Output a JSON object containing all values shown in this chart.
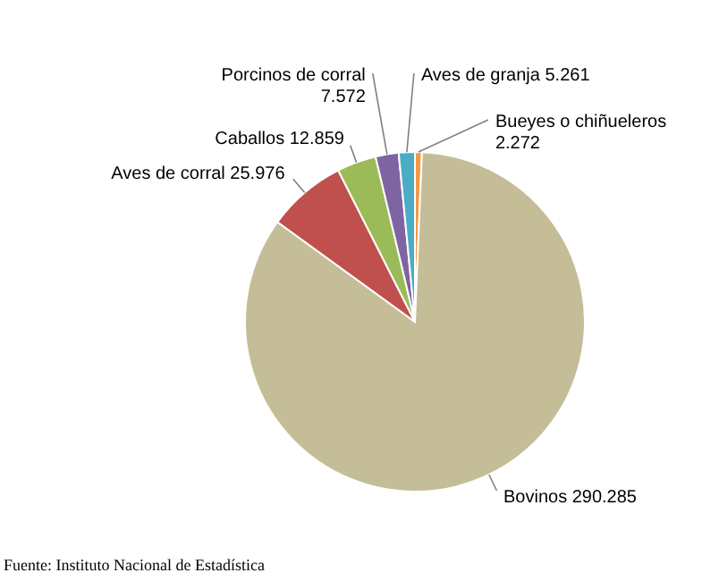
{
  "chart_data": {
    "type": "pie",
    "categories": [
      "Bueyes o chiñueleros",
      "Bovinos",
      "Aves de corral",
      "Caballos",
      "Porcinos de corral",
      "Aves de granja"
    ],
    "values": [
      2.272,
      290.285,
      25.976,
      12.859,
      7.572,
      5.261
    ],
    "value_labels": [
      "2.272",
      "290.285",
      "25.976",
      "12.859",
      "7.572",
      "5.261"
    ],
    "colors": [
      "#f79646",
      "#c4bd97",
      "#c0504d",
      "#9bbb59",
      "#8064a2",
      "#4bacc6"
    ],
    "annotations": [
      "Fuente: Instituto Nacional de Estadística"
    ]
  }
}
